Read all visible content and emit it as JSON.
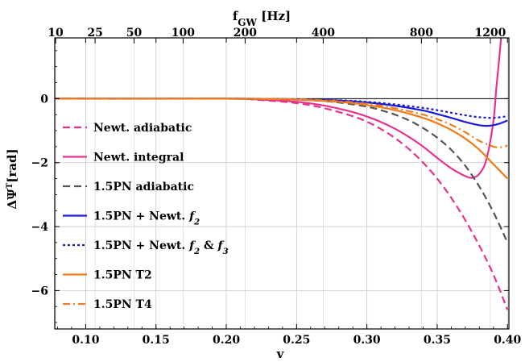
{
  "chart_data": {
    "type": "line",
    "xlabel": "v",
    "ylabel": "ΔΨ",
    "ylabel_sup": "T",
    "ylabel_unit": "[rad]",
    "top_axis_label": "f",
    "top_axis_label_sub": "GW",
    "top_axis_unit": " [Hz]",
    "xlim": [
      0.078,
      0.401
    ],
    "ylim": [
      -7.2,
      1.9
    ],
    "grid": true,
    "legend_position": "left",
    "x_ticks": [
      0.1,
      0.15,
      0.2,
      0.25,
      0.3,
      0.35,
      0.4
    ],
    "x_tick_labels": [
      "0.10",
      "0.15",
      "0.20",
      "0.25",
      "0.30",
      "0.35",
      "0.40"
    ],
    "y_ticks": [
      0,
      -2,
      -4,
      -6
    ],
    "y_tick_labels": [
      "0",
      "−2",
      "−4",
      "−6"
    ],
    "top_ticks": [
      {
        "label": "10",
        "v": 0.0786
      },
      {
        "label": "25",
        "v": 0.1067
      },
      {
        "label": "50",
        "v": 0.1344
      },
      {
        "label": "100",
        "v": 0.1693
      },
      {
        "label": "200",
        "v": 0.2134
      },
      {
        "label": "400",
        "v": 0.2689
      },
      {
        "label": "800",
        "v": 0.3388
      },
      {
        "label": "1200",
        "v": 0.3878
      }
    ],
    "series": [
      {
        "name": "Newt. adiabatic",
        "color": "#e8318c",
        "dash": "dashed",
        "x": [
          0.078,
          0.2,
          0.22,
          0.25,
          0.27,
          0.29,
          0.3,
          0.31,
          0.32,
          0.33,
          0.34,
          0.35,
          0.36,
          0.37,
          0.38,
          0.39,
          0.4
        ],
        "y": [
          0,
          0,
          -0.03,
          -0.14,
          -0.3,
          -0.55,
          -0.72,
          -0.95,
          -1.23,
          -1.58,
          -2.0,
          -2.5,
          -3.1,
          -3.8,
          -4.6,
          -5.5,
          -6.6
        ]
      },
      {
        "name": "Newt. integral",
        "color": "#e8318c",
        "dash": "solid",
        "x": [
          0.078,
          0.2,
          0.22,
          0.25,
          0.27,
          0.29,
          0.3,
          0.31,
          0.32,
          0.33,
          0.34,
          0.35,
          0.36,
          0.37,
          0.375,
          0.38,
          0.385,
          0.39,
          0.392,
          0.394,
          0.3955
        ],
        "y": [
          0,
          0,
          -0.02,
          -0.1,
          -0.22,
          -0.42,
          -0.56,
          -0.73,
          -0.94,
          -1.2,
          -1.5,
          -1.85,
          -2.18,
          -2.42,
          -2.47,
          -2.35,
          -1.9,
          -0.7,
          0.3,
          1.2,
          1.95
        ]
      },
      {
        "name": "1.5PN adiabatic",
        "color": "#555555",
        "dash": "dashed",
        "x": [
          0.078,
          0.2,
          0.23,
          0.26,
          0.28,
          0.3,
          0.31,
          0.32,
          0.33,
          0.34,
          0.35,
          0.36,
          0.37,
          0.38,
          0.39,
          0.4
        ],
        "y": [
          0,
          0,
          -0.01,
          -0.05,
          -0.12,
          -0.25,
          -0.36,
          -0.5,
          -0.68,
          -0.92,
          -1.22,
          -1.6,
          -2.1,
          -2.75,
          -3.55,
          -4.5
        ]
      },
      {
        "name": "1.5PN + Newt. f2",
        "color": "#1a1adb",
        "dash": "solid",
        "x": [
          0.078,
          0.2,
          0.25,
          0.28,
          0.3,
          0.32,
          0.34,
          0.35,
          0.36,
          0.37,
          0.38,
          0.385,
          0.39,
          0.395,
          0.4
        ],
        "y": [
          0,
          0,
          -0.02,
          -0.06,
          -0.12,
          -0.22,
          -0.37,
          -0.48,
          -0.6,
          -0.73,
          -0.83,
          -0.85,
          -0.83,
          -0.77,
          -0.68
        ]
      },
      {
        "name": "1.5PN + Newt. f2 & f3",
        "color": "#1a1adb",
        "dash": "dotted",
        "x": [
          0.078,
          0.2,
          0.25,
          0.28,
          0.3,
          0.32,
          0.34,
          0.35,
          0.36,
          0.37,
          0.38,
          0.39,
          0.4
        ],
        "y": [
          0,
          0,
          -0.02,
          -0.05,
          -0.1,
          -0.18,
          -0.29,
          -0.36,
          -0.44,
          -0.52,
          -0.58,
          -0.6,
          -0.55
        ]
      },
      {
        "name": "1.5PN T2",
        "color": "#f07c1c",
        "dash": "solid",
        "x": [
          0.078,
          0.2,
          0.25,
          0.28,
          0.3,
          0.32,
          0.34,
          0.35,
          0.36,
          0.37,
          0.38,
          0.39,
          0.4
        ],
        "y": [
          0,
          0,
          -0.03,
          -0.1,
          -0.2,
          -0.36,
          -0.6,
          -0.77,
          -0.98,
          -1.25,
          -1.6,
          -2.05,
          -2.5
        ]
      },
      {
        "name": "1.5PN T4",
        "color": "#f07c1c",
        "dash": "dashdot",
        "x": [
          0.078,
          0.2,
          0.25,
          0.28,
          0.3,
          0.32,
          0.34,
          0.35,
          0.36,
          0.37,
          0.38,
          0.39,
          0.395,
          0.4
        ],
        "y": [
          0,
          0,
          -0.02,
          -0.08,
          -0.16,
          -0.3,
          -0.5,
          -0.64,
          -0.82,
          -1.05,
          -1.32,
          -1.5,
          -1.52,
          -1.47
        ]
      }
    ],
    "legend": [
      {
        "text": "Newt. adiabatic"
      },
      {
        "text": "Newt. integral"
      },
      {
        "text": "1.5PN adiabatic"
      },
      {
        "text": "1.5PN + Newt. ",
        "italic": "f",
        "sub": "2"
      },
      {
        "text": "1.5PN + Newt. ",
        "italic": "f",
        "sub": "2",
        "mid": " & ",
        "italic2": "f",
        "sub2": "3"
      },
      {
        "text": "1.5PN T2"
      },
      {
        "text": "1.5PN T4"
      }
    ]
  }
}
